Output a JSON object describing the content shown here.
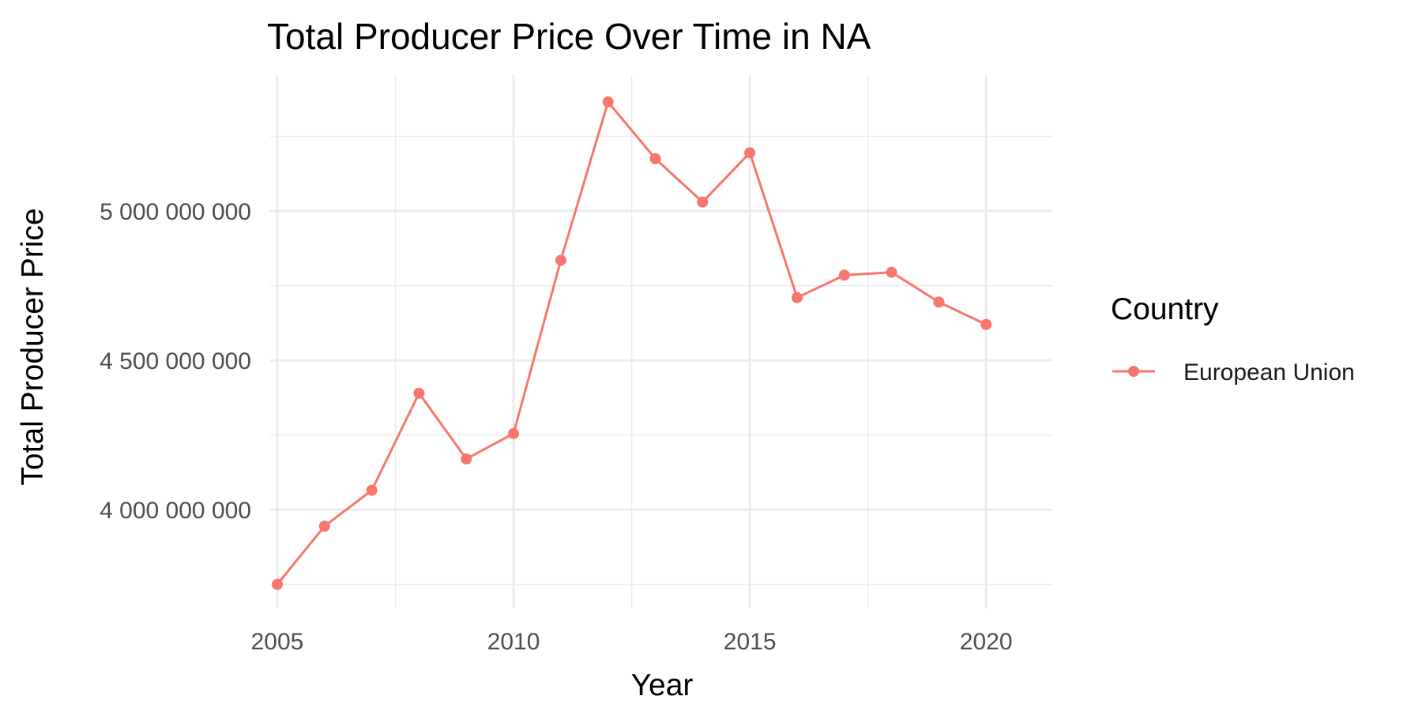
{
  "chart_data": {
    "type": "line",
    "title": "Total Producer Price Over Time in NA",
    "xlabel": "Year",
    "ylabel": "Total Producer Price",
    "x": [
      2005,
      2006,
      2007,
      2008,
      2009,
      2010,
      2011,
      2012,
      2013,
      2014,
      2015,
      2016,
      2017,
      2018,
      2019,
      2020
    ],
    "series": [
      {
        "name": "European Union",
        "color": "#F8766D",
        "values": [
          3750000000,
          3945000000,
          4065000000,
          4390000000,
          4170000000,
          4255000000,
          4835000000,
          5365000000,
          5175000000,
          5030000000,
          5195000000,
          4710000000,
          4785000000,
          4795000000,
          4695000000,
          4620000000
        ]
      }
    ],
    "xlim": [
      2004.85,
      2021.4
    ],
    "ylim": [
      3670000000,
      5455000000
    ],
    "x_ticks": [
      2005,
      2010,
      2015,
      2020
    ],
    "x_tick_labels": [
      "2005",
      "2010",
      "2015",
      "2020"
    ],
    "y_ticks": [
      4000000000,
      4500000000,
      5000000000
    ],
    "y_tick_labels": [
      "4 000 000 000",
      "4 500 000 000",
      "5 000 000 000"
    ],
    "x_minor_ticks": [
      2007.5,
      2012.5,
      2017.5
    ],
    "y_minor_ticks": [
      3750000000,
      4250000000,
      4750000000,
      5250000000
    ],
    "grid": true,
    "legend": {
      "title": "Country",
      "placement": "right"
    }
  }
}
